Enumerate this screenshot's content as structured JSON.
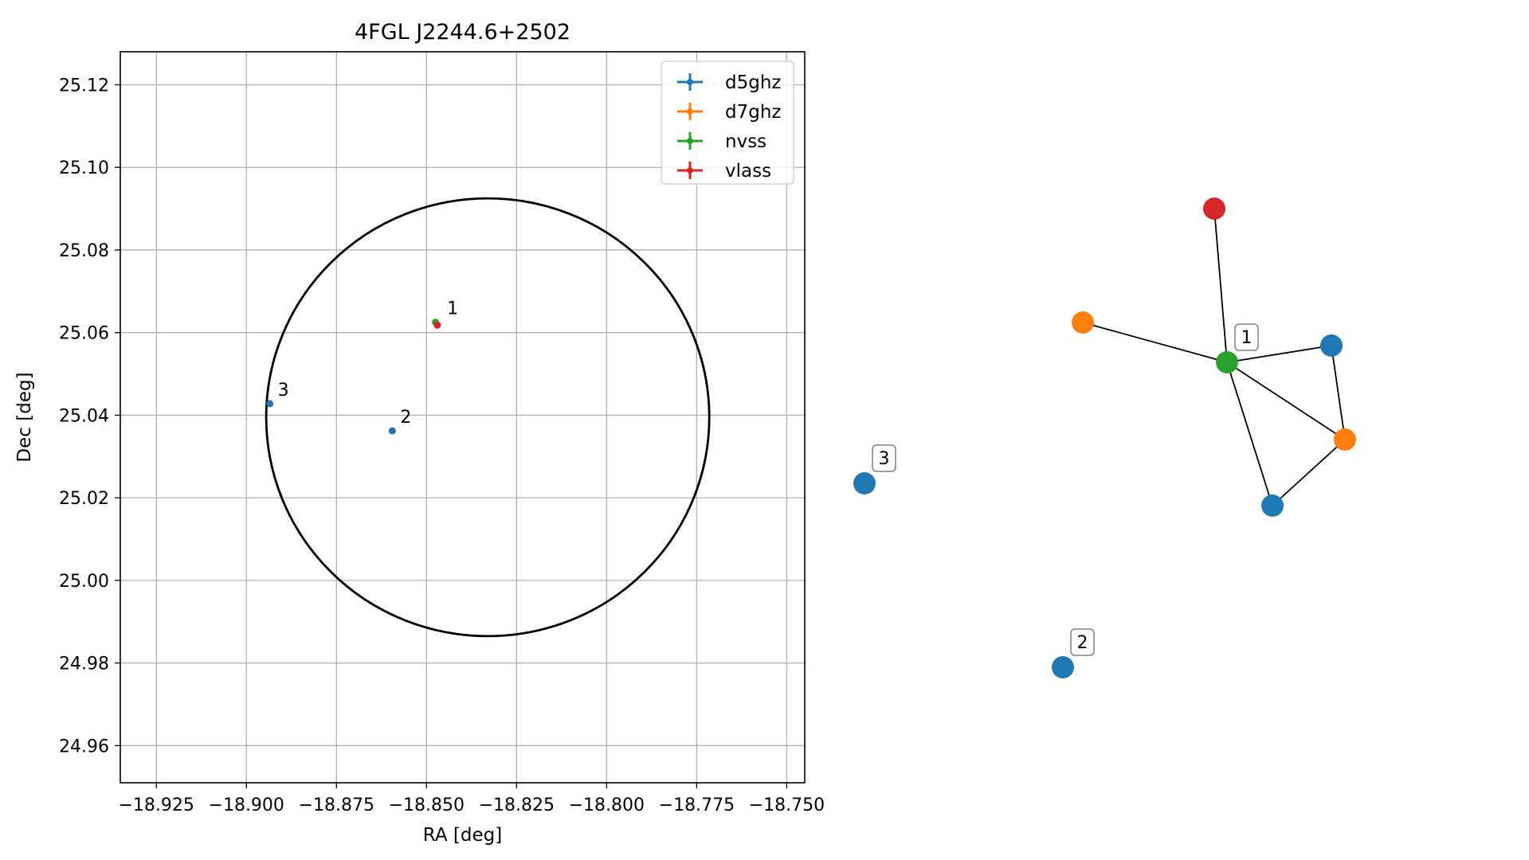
{
  "chart_data": [
    {
      "type": "scatter",
      "title": "4FGL J2244.6+2502",
      "xlabel": "RA [deg]",
      "ylabel": "Dec [deg]",
      "xlim": [
        -18.935,
        -18.745
      ],
      "ylim": [
        24.951,
        25.128
      ],
      "grid": true,
      "legend_position": "top-right",
      "xticks": [
        -18.925,
        -18.9,
        -18.875,
        -18.85,
        -18.825,
        -18.8,
        -18.775,
        -18.75
      ],
      "xtick_labels": [
        "−18.925",
        "−18.900",
        "−18.875",
        "−18.850",
        "−18.825",
        "−18.800",
        "−18.775",
        "−18.750"
      ],
      "yticks": [
        24.96,
        24.98,
        25.0,
        25.02,
        25.04,
        25.06,
        25.08,
        25.1,
        25.12
      ],
      "ytick_labels": [
        "24.96",
        "24.98",
        "25.00",
        "25.02",
        "25.04",
        "25.06",
        "25.08",
        "25.10",
        "25.12"
      ],
      "series": [
        {
          "name": "d5ghz",
          "color": "#1f77b4",
          "points": [
            {
              "x": -18.8595,
              "y": 25.0362
            },
            {
              "x": -18.8935,
              "y": 25.0428
            }
          ]
        },
        {
          "name": "d7ghz",
          "color": "#ff7f0e",
          "points": []
        },
        {
          "name": "nvss",
          "color": "#2ca02c",
          "points": [
            {
              "x": -18.8475,
              "y": 25.0625
            }
          ]
        },
        {
          "name": "vlass",
          "color": "#d62728",
          "points": [
            {
              "x": -18.847,
              "y": 25.0618
            }
          ]
        }
      ],
      "annotations": [
        {
          "text": "1",
          "x": -18.8465,
          "y": 25.0625
        },
        {
          "text": "2",
          "x": -18.8595,
          "y": 25.0362
        },
        {
          "text": "3",
          "x": -18.8935,
          "y": 25.0428
        }
      ],
      "ellipse": {
        "center_x": -18.833,
        "center_y": 25.0395,
        "semi_width": 0.0615,
        "semi_height": 0.053,
        "color": "#000000"
      }
    },
    {
      "type": "network",
      "node_colors": {
        "d5ghz": "#1f77b4",
        "d7ghz": "#ff7f0e",
        "nvss": "#2ca02c",
        "vlass": "#d62728"
      },
      "nodes": [
        {
          "id": "vlass-a",
          "group": "vlass"
        },
        {
          "id": "d7ghz-a",
          "group": "d7ghz"
        },
        {
          "id": "nvss-a",
          "group": "nvss",
          "label": "1"
        },
        {
          "id": "d5ghz-a",
          "group": "d5ghz"
        },
        {
          "id": "d7ghz-b",
          "group": "d7ghz"
        },
        {
          "id": "d5ghz-b",
          "group": "d5ghz"
        },
        {
          "id": "d5ghz-c",
          "group": "d5ghz",
          "label": "3"
        },
        {
          "id": "d5ghz-d",
          "group": "d5ghz",
          "label": "2"
        }
      ],
      "edges": [
        [
          "nvss-a",
          "vlass-a"
        ],
        [
          "nvss-a",
          "d7ghz-a"
        ],
        [
          "nvss-a",
          "d5ghz-a"
        ],
        [
          "nvss-a",
          "d7ghz-b"
        ],
        [
          "nvss-a",
          "d5ghz-b"
        ],
        [
          "d5ghz-a",
          "d7ghz-b"
        ],
        [
          "d7ghz-b",
          "d5ghz-b"
        ]
      ]
    }
  ]
}
